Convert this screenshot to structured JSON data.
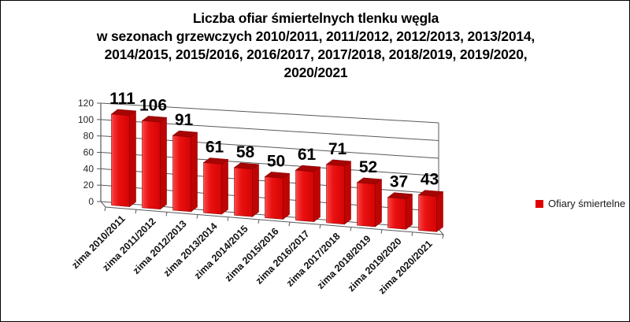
{
  "chart_data": {
    "type": "bar",
    "style": "3d-column",
    "title_lines": [
      "Liczba ofiar śmiertelnych tlenku węgla",
      "w sezonach grzewczych 2010/2011, 2011/2012, 2012/2013, 2013/2014,",
      "2014/2015, 2015/2016, 2016/2017, 2017/2018, 2018/2019, 2019/2020,",
      "2020/2021"
    ],
    "categories": [
      "zima 2010/2011",
      "zima 2011/2012",
      "zima 2012/2013",
      "zima 2013/2014",
      "zima 2014/2015",
      "zima 2015/2016",
      "zima 2016/2017",
      "zima 2017/2018",
      "zima 2018/2019",
      "zima 2019/2020",
      "zima 2020/2021"
    ],
    "series": [
      {
        "name": "Ofiary śmiertelne",
        "values": [
          111,
          106,
          91,
          61,
          58,
          50,
          61,
          71,
          52,
          37,
          43
        ]
      }
    ],
    "data_labels": true,
    "yticks": [
      0,
      20,
      40,
      60,
      80,
      100,
      120
    ],
    "ylim": [
      0,
      120
    ],
    "xlabel": "",
    "ylabel": "",
    "grid": true,
    "legend_position": "right",
    "colors": {
      "bar_front": "#ea1111",
      "bar_front_highlight": "#ff6a6a",
      "bar_front_dark": "#d40404",
      "bar_side": "#bf0404",
      "bar_top": "#a50505",
      "bar_edge": "#8f0000",
      "gridline": "#595959",
      "axis": "#595959",
      "data_label": "#000000",
      "tick_label": "#262626",
      "category_label": "#111111",
      "legend_marker": "#e00000"
    }
  }
}
